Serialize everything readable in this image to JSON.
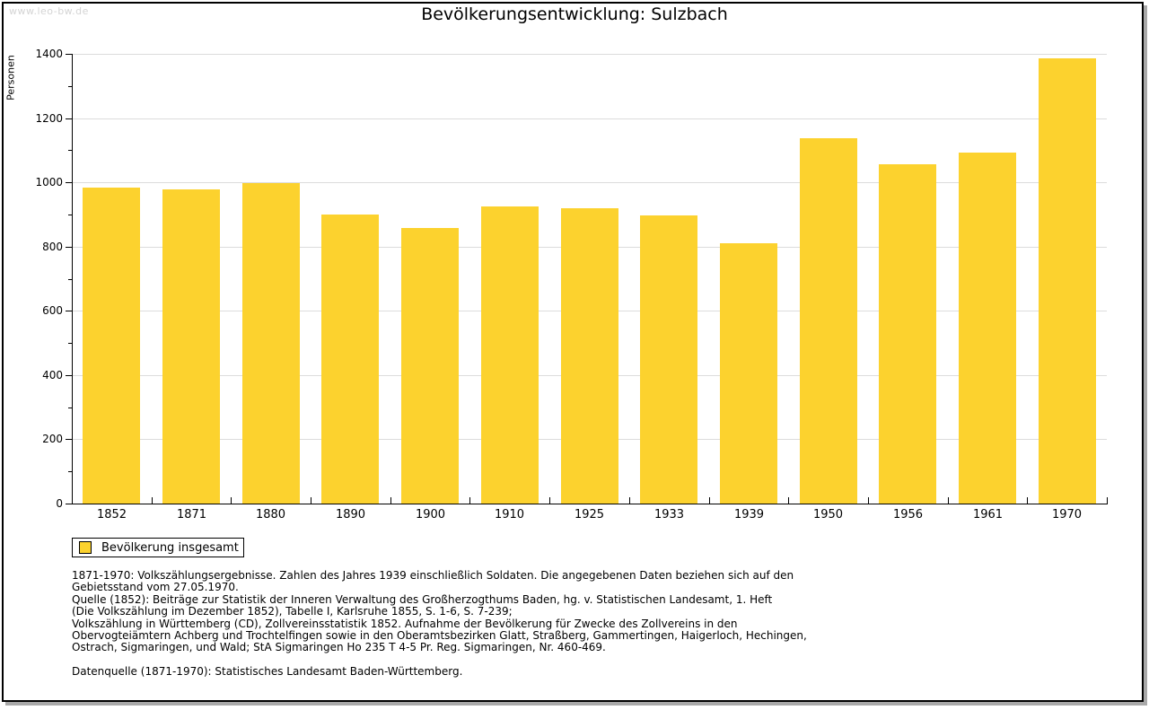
{
  "page": {
    "watermark": "www.leo-bw.de",
    "title": "Bevölkerungsentwicklung: Sulzbach"
  },
  "chart_data": {
    "type": "bar",
    "title": "Bevölkerungsentwicklung: Sulzbach",
    "xlabel": "",
    "ylabel": "Personen",
    "categories": [
      "1852",
      "1871",
      "1880",
      "1890",
      "1900",
      "1910",
      "1925",
      "1933",
      "1939",
      "1950",
      "1956",
      "1961",
      "1970"
    ],
    "values": [
      985,
      979,
      998,
      901,
      857,
      925,
      918,
      897,
      809,
      1138,
      1056,
      1094,
      1387
    ],
    "ylim": [
      0,
      1400
    ],
    "ytick_step": 200,
    "y_minor_tick_step": 100,
    "grid": "horizontal-major",
    "legend_position": "bottom-left",
    "series_name": "Bevölkerung insgesamt"
  },
  "legend": {
    "label": "Bevölkerung insgesamt"
  },
  "colors": {
    "bar": "#FCD22E",
    "grid": "#DCDCDC",
    "axis": "#000000",
    "watermark": "#D4D4D4",
    "frame_border": "#000000",
    "frame_shadow": "#A9A9A9"
  },
  "footnotes": {
    "lines": [
      "1871-1970: Volkszählungsergebnisse. Zahlen des Jahres 1939 einschließlich Soldaten. Die angegebenen Daten beziehen sich auf den",
      "Gebietsstand vom 27.05.1970.",
      "Quelle (1852): Beiträge zur Statistik der Inneren Verwaltung des Großherzogthums Baden, hg. v. Statistischen Landesamt, 1. Heft",
      "(Die Volkszählung im Dezember 1852), Tabelle I, Karlsruhe 1855, S. 1-6, S. 7-239;",
      "Volkszählung in Württemberg (CD), Zollvereinsstatistik 1852. Aufnahme der Bevölkerung für Zwecke des Zollvereins in den",
      "Obervogteiämtern Achberg und Trochtelfingen sowie in den Oberamtsbezirken Glatt, Straßberg, Gammertingen, Haigerloch, Hechingen,",
      "Ostrach, Sigmaringen, und Wald; StA Sigmaringen Ho 235 T 4-5 Pr. Reg. Sigmaringen, Nr. 460-469.",
      "",
      "Datenquelle (1871-1970): Statistisches Landesamt Baden-Württemberg."
    ]
  }
}
